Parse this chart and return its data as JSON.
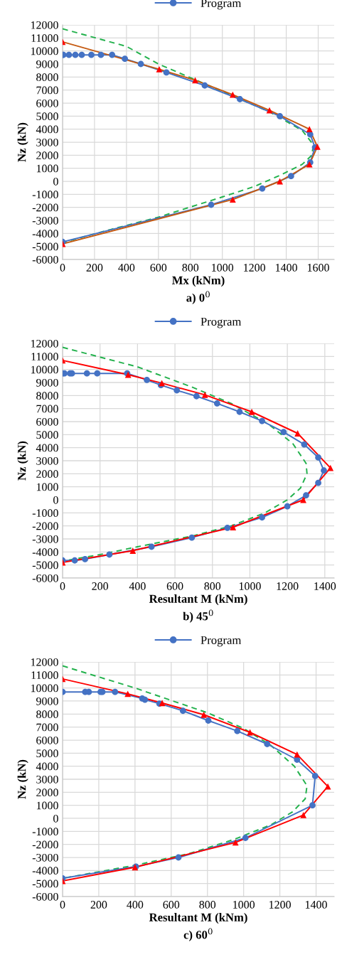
{
  "chart_data": [
    {
      "type": "line",
      "xlabel": "Mx (kNm)",
      "ylabel": "Nz (kN)",
      "annotations": [
        "a) 0$^{0}$"
      ],
      "xlim": [
        0,
        1700
      ],
      "xticks": [
        0,
        200,
        400,
        600,
        800,
        1000,
        1200,
        1400,
        1600
      ],
      "ylim": [
        -6000,
        12000
      ],
      "yticks": [
        -6000,
        -5000,
        -4000,
        -3000,
        -2000,
        -1000,
        0,
        1000,
        2000,
        3000,
        4000,
        5000,
        6000,
        7000,
        8000,
        9000,
        10000,
        11000,
        12000
      ],
      "grid": true,
      "legend": "top",
      "series": [
        {
          "color": "#22b14c",
          "line_style": "dashed",
          "marker": "none",
          "x": [
            0,
            400,
            600,
            1000,
            1300,
            1500,
            1570,
            1560,
            1500,
            1350,
            1200,
            1000,
            600,
            300,
            0
          ],
          "values": [
            11700,
            10350,
            9000,
            6900,
            5300,
            3900,
            2800,
            2000,
            1300,
            400,
            -400,
            -1200,
            -2750,
            -3700,
            -4700
          ]
        },
        {
          "name": "Program",
          "color": "#4472c4",
          "line_style": "solid",
          "marker": "circle",
          "x": [
            0,
            5,
            40,
            80,
            120,
            180,
            240,
            310,
            390,
            490,
            650,
            890,
            1110,
            1360,
            1550,
            1580,
            1550,
            1430,
            1250,
            930,
            0
          ],
          "values": [
            9700,
            9700,
            9700,
            9700,
            9700,
            9700,
            9700,
            9700,
            9400,
            9000,
            8350,
            7350,
            6300,
            5000,
            3600,
            2600,
            1450,
            400,
            -550,
            -1800,
            -4650
          ]
        },
        {
          "color": "#c55a11",
          "colors": [
            "#ff0000",
            "#ff0000",
            "#ff0000",
            "#ff0000",
            "#ff0000",
            "#ff0000",
            "#ff0000",
            "#ff0000",
            "#ff0000",
            "#ff0000",
            "#ff0000"
          ],
          "line_style": "solid",
          "marker": "triangle",
          "x": [
            0,
            605,
            830,
            1065,
            1295,
            1545,
            1595,
            1545,
            1360,
            1065,
            0
          ],
          "values": [
            10700,
            8600,
            7750,
            6650,
            5450,
            4000,
            2650,
            1300,
            0,
            -1400,
            -4800
          ]
        }
      ]
    },
    {
      "type": "line",
      "xlabel": "Resultant M (kNm)",
      "ylabel": "Nz (kN)",
      "annotations": [
        "b) 45$^{0}$"
      ],
      "xlim": [
        0,
        1450
      ],
      "xticks": [
        0,
        200,
        400,
        600,
        800,
        1000,
        1200,
        1400
      ],
      "ylim": [
        -6000,
        12000
      ],
      "yticks": [
        -6000,
        -5000,
        -4000,
        -3000,
        -2000,
        -1000,
        0,
        1000,
        2000,
        3000,
        4000,
        5000,
        6000,
        7000,
        8000,
        9000,
        10000,
        11000,
        12000
      ],
      "grid": true,
      "legend": "top",
      "series": [
        {
          "color": "#22b14c",
          "line_style": "dashed",
          "marker": "none",
          "x": [
            0,
            400,
            700,
            900,
            1100,
            1230,
            1300,
            1305,
            1270,
            1200,
            1080,
            900,
            700,
            400,
            200,
            0
          ],
          "values": [
            11700,
            10200,
            8600,
            7400,
            5800,
            4300,
            2800,
            2000,
            900,
            0,
            -1000,
            -2000,
            -2750,
            -3600,
            -4200,
            -4700
          ]
        },
        {
          "name": "Program",
          "color": "#4472c4",
          "line_style": "solid",
          "marker": "circle",
          "x": [
            0,
            10,
            40,
            50,
            130,
            185,
            345,
            450,
            525,
            610,
            715,
            825,
            945,
            1065,
            1180,
            1290,
            1365,
            1395,
            1365,
            1300,
            1200,
            1065,
            880,
            690,
            475,
            250,
            120,
            65,
            0
          ],
          "values": [
            9700,
            9700,
            9700,
            9700,
            9700,
            9700,
            9700,
            9200,
            8800,
            8400,
            7950,
            7400,
            6750,
            6050,
            5200,
            4250,
            3250,
            2250,
            1300,
            350,
            -500,
            -1350,
            -2150,
            -2900,
            -3600,
            -4200,
            -4550,
            -4650,
            -4650
          ]
        },
        {
          "color": "#ff0000",
          "line_style": "solid",
          "marker": "triangle",
          "x": [
            0,
            350,
            530,
            760,
            1010,
            1255,
            1430,
            1285,
            910,
            375,
            0
          ],
          "values": [
            10700,
            9600,
            8950,
            8050,
            6750,
            5100,
            2450,
            0,
            -2100,
            -3900,
            -4800
          ]
        }
      ]
    },
    {
      "type": "line",
      "xlabel": "Resultant M (kNm)",
      "ylabel": "Nz (kN)",
      "annotations": [
        "c) 60$^{0}$"
      ],
      "xlim": [
        0,
        1500
      ],
      "xticks": [
        0,
        200,
        400,
        600,
        800,
        1000,
        1200,
        1400
      ],
      "ylim": [
        -6000,
        12000
      ],
      "yticks": [
        -6000,
        -5000,
        -4000,
        -3000,
        -2000,
        -1000,
        0,
        1000,
        2000,
        3000,
        4000,
        5000,
        6000,
        7000,
        8000,
        9000,
        10000,
        11000,
        12000
      ],
      "grid": true,
      "legend": "top",
      "series": [
        {
          "color": "#22b14c",
          "line_style": "dashed",
          "marker": "none",
          "x": [
            0,
            400,
            800,
            1000,
            1150,
            1280,
            1350,
            1340,
            1270,
            1150,
            950,
            700,
            400,
            0
          ],
          "values": [
            11700,
            10000,
            8100,
            6900,
            5600,
            4000,
            2500,
            1500,
            500,
            -500,
            -1600,
            -2700,
            -3600,
            -4600
          ]
        },
        {
          "name": "Program",
          "color": "#4472c4",
          "line_style": "solid",
          "marker": "circle",
          "x": [
            0,
            125,
            145,
            210,
            220,
            290,
            440,
            455,
            535,
            665,
            805,
            965,
            1130,
            1295,
            1395,
            1380,
            1010,
            640,
            405,
            0
          ],
          "values": [
            9700,
            9700,
            9700,
            9700,
            9700,
            9700,
            9200,
            9100,
            8800,
            8250,
            7500,
            6700,
            5700,
            4500,
            3250,
            1000,
            -1500,
            -3000,
            -3700,
            -4600
          ]
        },
        {
          "color": "#ff0000",
          "line_style": "solid",
          "marker": "triangle",
          "x": [
            0,
            360,
            550,
            780,
            1035,
            1295,
            1465,
            1330,
            955,
            400,
            0
          ],
          "values": [
            10700,
            9550,
            8850,
            7950,
            6600,
            4900,
            2450,
            250,
            -1850,
            -3750,
            -4800
          ]
        }
      ]
    }
  ]
}
